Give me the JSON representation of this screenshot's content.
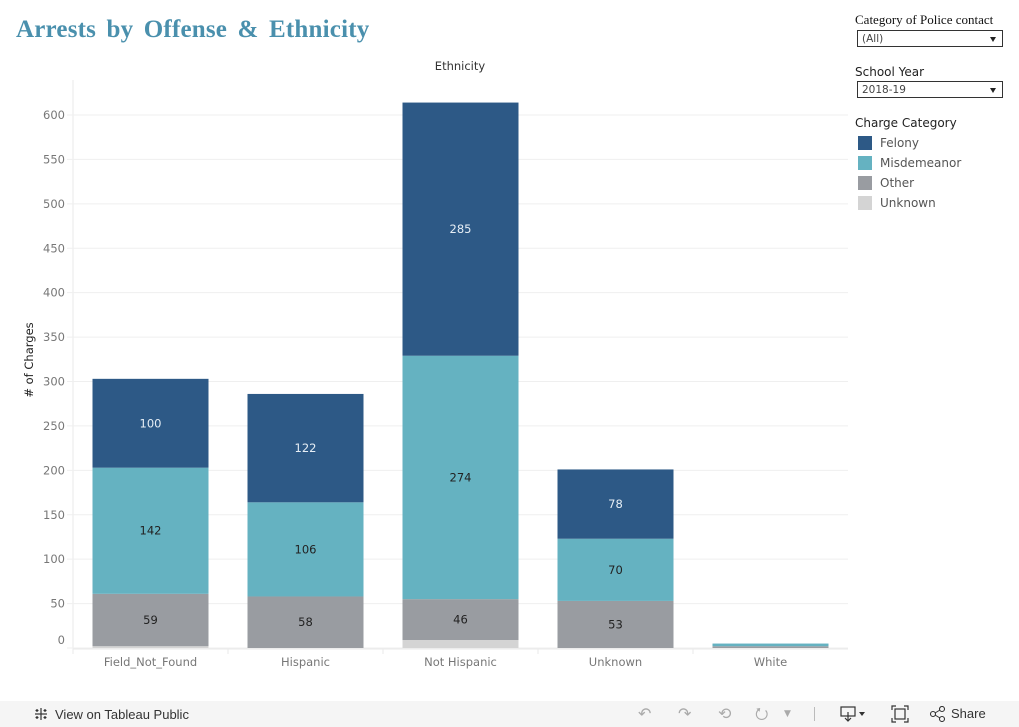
{
  "title": "Arrests by Offense & Ethnicity",
  "filters": [
    {
      "label": "Category of Police contact",
      "value": "(All)"
    },
    {
      "label": "School Year",
      "value": "2018-19"
    }
  ],
  "legend": {
    "title": "Charge Category",
    "items": [
      {
        "label": "Felony",
        "color": "#2d5986"
      },
      {
        "label": "Misdemeanor",
        "color": "#65b2c1"
      },
      {
        "label": "Other",
        "color": "#999ca1"
      },
      {
        "label": "Unknown",
        "color": "#d4d4d4"
      }
    ]
  },
  "footer": {
    "view_on": "View on Tableau Public",
    "share": "Share",
    "icons": [
      "undo-icon",
      "redo-icon",
      "revert-icon",
      "refresh-icon",
      "dropdown-icon",
      "download-icon",
      "fullscreen-icon",
      "share-icon"
    ]
  },
  "chart_data": {
    "type": "bar",
    "stacked": true,
    "title": "",
    "column_header": "Ethnicity",
    "xlabel": "",
    "ylabel": "# of Charges",
    "ylim": [
      0,
      630
    ],
    "yticks": [
      0,
      50,
      100,
      150,
      200,
      250,
      300,
      350,
      400,
      450,
      500,
      550,
      600
    ],
    "grid": true,
    "legend": "right",
    "categories": [
      "Field_Not_Found",
      "Hispanic",
      "Not Hispanic",
      "Unknown",
      "White"
    ],
    "series": [
      {
        "name": "Unknown",
        "color": "#d4d4d4",
        "values": [
          2,
          0,
          9,
          0,
          0
        ],
        "labels": [
          null,
          null,
          null,
          null,
          null
        ]
      },
      {
        "name": "Other",
        "color": "#999ca1",
        "values": [
          59,
          58,
          46,
          53,
          2
        ],
        "labels": [
          "59",
          "58",
          "46",
          "53",
          null
        ]
      },
      {
        "name": "Misdemeanor",
        "color": "#65b2c1",
        "values": [
          142,
          106,
          274,
          70,
          3
        ],
        "labels": [
          "142",
          "106",
          "274",
          "70",
          null
        ]
      },
      {
        "name": "Felony",
        "color": "#2d5986",
        "values": [
          100,
          122,
          285,
          78,
          0
        ],
        "labels": [
          "100",
          "122",
          "285",
          "78",
          null
        ]
      }
    ]
  }
}
